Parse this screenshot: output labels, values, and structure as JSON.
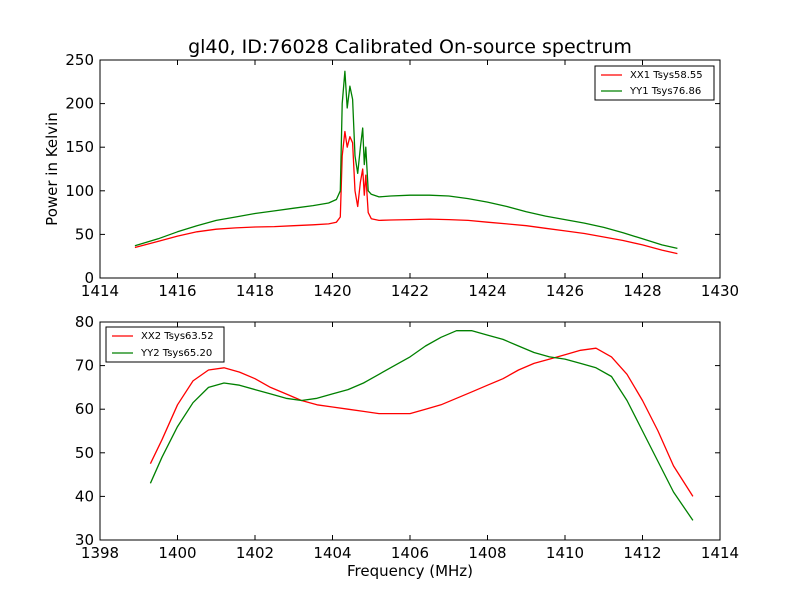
{
  "figure": {
    "title": "gl40, ID:76028 Calibrated On-source spectrum"
  },
  "chart_data": [
    {
      "type": "line",
      "ylabel": "Power in Kelvin",
      "xlabel": "",
      "xlim": [
        1414,
        1430
      ],
      "ylim": [
        0,
        250
      ],
      "xticks": [
        1414,
        1416,
        1418,
        1420,
        1422,
        1424,
        1426,
        1428,
        1430
      ],
      "yticks": [
        0,
        50,
        100,
        150,
        200,
        250
      ],
      "legend_position": "top-right",
      "series": [
        {
          "name": "XX1 Tsys58.55",
          "color": "#ff0000",
          "x": [
            1414.9,
            1415.5,
            1416.0,
            1416.5,
            1417.0,
            1417.5,
            1418.0,
            1418.5,
            1419.0,
            1419.5,
            1419.9,
            1420.1,
            1420.2,
            1420.25,
            1420.32,
            1420.38,
            1420.45,
            1420.52,
            1420.58,
            1420.65,
            1420.72,
            1420.78,
            1420.82,
            1420.86,
            1420.92,
            1421.0,
            1421.2,
            1421.5,
            1422.0,
            1422.5,
            1423.0,
            1423.5,
            1424.0,
            1424.5,
            1425.0,
            1425.5,
            1426.0,
            1426.5,
            1427.0,
            1427.5,
            1428.0,
            1428.5,
            1428.9
          ],
          "values": [
            35,
            42,
            48,
            53,
            56,
            57.5,
            58.5,
            59,
            60,
            61,
            62,
            64,
            70,
            140,
            168,
            150,
            162,
            155,
            100,
            82,
            110,
            125,
            95,
            118,
            75,
            68,
            66,
            66.5,
            67,
            67.5,
            67,
            66,
            64,
            62,
            60,
            57,
            54,
            51,
            47,
            43,
            38,
            32,
            28
          ]
        },
        {
          "name": "YY1 Tsys76.86",
          "color": "#008000",
          "x": [
            1414.9,
            1415.5,
            1416.0,
            1416.5,
            1417.0,
            1417.5,
            1418.0,
            1418.5,
            1419.0,
            1419.5,
            1419.9,
            1420.1,
            1420.2,
            1420.25,
            1420.32,
            1420.38,
            1420.45,
            1420.52,
            1420.58,
            1420.65,
            1420.72,
            1420.78,
            1420.82,
            1420.86,
            1420.92,
            1421.0,
            1421.2,
            1421.5,
            1422.0,
            1422.5,
            1423.0,
            1423.5,
            1424.0,
            1424.5,
            1425.0,
            1425.5,
            1426.0,
            1426.5,
            1427.0,
            1427.5,
            1428.0,
            1428.5,
            1428.9
          ],
          "values": [
            37,
            45,
            53,
            60,
            66,
            70,
            74,
            77,
            80,
            83,
            86,
            90,
            100,
            200,
            237,
            195,
            220,
            205,
            140,
            120,
            150,
            172,
            130,
            150,
            100,
            96,
            93,
            94,
            95,
            95,
            94,
            91,
            87,
            82,
            76,
            71,
            67,
            63,
            58,
            52,
            45,
            38,
            34
          ]
        }
      ]
    },
    {
      "type": "line",
      "ylabel": "",
      "xlabel": "Frequency (MHz)",
      "xlim": [
        1398,
        1414
      ],
      "ylim": [
        30,
        80
      ],
      "xticks": [
        1398,
        1400,
        1402,
        1404,
        1406,
        1408,
        1410,
        1412,
        1414
      ],
      "yticks": [
        30,
        40,
        50,
        60,
        70,
        80
      ],
      "legend_position": "top-left",
      "series": [
        {
          "name": "XX2 Tsys63.52",
          "color": "#ff0000",
          "x": [
            1399.3,
            1399.6,
            1400.0,
            1400.4,
            1400.8,
            1401.2,
            1401.6,
            1402.0,
            1402.4,
            1402.8,
            1403.2,
            1403.6,
            1404.0,
            1404.4,
            1404.8,
            1405.2,
            1405.6,
            1406.0,
            1406.4,
            1406.8,
            1407.2,
            1407.6,
            1408.0,
            1408.4,
            1408.8,
            1409.2,
            1409.6,
            1410.0,
            1410.4,
            1410.8,
            1411.2,
            1411.6,
            1412.0,
            1412.4,
            1412.8,
            1413.3
          ],
          "values": [
            47.5,
            53,
            61,
            66.5,
            69,
            69.5,
            68.5,
            67,
            65,
            63.5,
            62,
            61,
            60.5,
            60,
            59.5,
            59,
            59,
            59,
            60,
            61,
            62.5,
            64,
            65.5,
            67,
            69,
            70.5,
            71.5,
            72.5,
            73.5,
            74,
            72,
            68,
            62,
            55,
            47,
            40
          ]
        },
        {
          "name": "YY2 Tsys65.20",
          "color": "#008000",
          "x": [
            1399.3,
            1399.6,
            1400.0,
            1400.4,
            1400.8,
            1401.2,
            1401.6,
            1402.0,
            1402.4,
            1402.8,
            1403.2,
            1403.6,
            1404.0,
            1404.4,
            1404.8,
            1405.2,
            1405.6,
            1406.0,
            1406.4,
            1406.8,
            1407.2,
            1407.6,
            1408.0,
            1408.4,
            1408.8,
            1409.2,
            1409.6,
            1410.0,
            1410.4,
            1410.8,
            1411.2,
            1411.6,
            1412.0,
            1412.4,
            1412.8,
            1413.3
          ],
          "values": [
            43,
            49,
            56,
            61.5,
            65,
            66,
            65.5,
            64.5,
            63.5,
            62.5,
            62,
            62.5,
            63.5,
            64.5,
            66,
            68,
            70,
            72,
            74.5,
            76.5,
            78,
            78,
            77,
            76,
            74.5,
            73,
            72,
            71.5,
            70.5,
            69.5,
            67.5,
            62,
            55,
            48,
            41,
            34.5
          ]
        }
      ]
    }
  ]
}
